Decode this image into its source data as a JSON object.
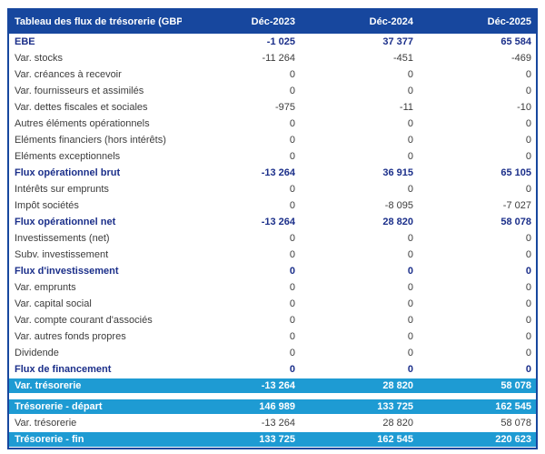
{
  "colors": {
    "header_bg": "#17479E",
    "highlight_bg": "#1E9BD3",
    "bold_text": "#1B2F8A",
    "body_text": "#3C3C3C",
    "border": "#17479E"
  },
  "table": {
    "header": {
      "title": "Tableau des flux de trésorerie (GBP)",
      "columns": [
        "Déc-2023",
        "Déc-2024",
        "Déc-2025"
      ]
    },
    "rows": [
      {
        "label": "EBE",
        "style": "bold",
        "values": [
          "-1 025",
          "37 377",
          "65 584"
        ]
      },
      {
        "label": "Var. stocks",
        "style": "normal",
        "values": [
          "-11 264",
          "-451",
          "-469"
        ]
      },
      {
        "label": "Var. créances à recevoir",
        "style": "normal",
        "values": [
          "0",
          "0",
          "0"
        ]
      },
      {
        "label": "Var. fournisseurs et assimilés",
        "style": "normal",
        "values": [
          "0",
          "0",
          "0"
        ]
      },
      {
        "label": "Var. dettes fiscales et sociales",
        "style": "normal",
        "values": [
          "-975",
          "-11",
          "-10"
        ]
      },
      {
        "label": "Autres éléments opérationnels",
        "style": "normal",
        "values": [
          "0",
          "0",
          "0"
        ]
      },
      {
        "label": "Eléments financiers (hors intérêts)",
        "style": "normal",
        "values": [
          "0",
          "0",
          "0"
        ]
      },
      {
        "label": "Eléments exceptionnels",
        "style": "normal",
        "values": [
          "0",
          "0",
          "0"
        ]
      },
      {
        "label": "Flux opérationnel brut",
        "style": "bold",
        "values": [
          "-13 264",
          "36 915",
          "65 105"
        ]
      },
      {
        "label": "Intérêts sur emprunts",
        "style": "normal",
        "values": [
          "0",
          "0",
          "0"
        ]
      },
      {
        "label": "Impôt sociétés",
        "style": "normal",
        "values": [
          "0",
          "-8 095",
          "-7 027"
        ]
      },
      {
        "label": "Flux opérationnel net",
        "style": "bold",
        "values": [
          "-13 264",
          "28 820",
          "58 078"
        ]
      },
      {
        "label": "Investissements (net)",
        "style": "normal",
        "values": [
          "0",
          "0",
          "0"
        ]
      },
      {
        "label": "Subv. investissement",
        "style": "normal",
        "values": [
          "0",
          "0",
          "0"
        ]
      },
      {
        "label": "Flux d'investissement",
        "style": "bold",
        "values": [
          "0",
          "0",
          "0"
        ]
      },
      {
        "label": "Var. emprunts",
        "style": "normal",
        "values": [
          "0",
          "0",
          "0"
        ]
      },
      {
        "label": "Var. capital social",
        "style": "normal",
        "values": [
          "0",
          "0",
          "0"
        ]
      },
      {
        "label": "Var. compte courant d'associés",
        "style": "normal",
        "values": [
          "0",
          "0",
          "0"
        ]
      },
      {
        "label": "Var. autres fonds propres",
        "style": "normal",
        "values": [
          "0",
          "0",
          "0"
        ]
      },
      {
        "label": "Dividende",
        "style": "normal",
        "values": [
          "0",
          "0",
          "0"
        ]
      },
      {
        "label": "Flux de financement",
        "style": "bold",
        "values": [
          "0",
          "0",
          "0"
        ]
      },
      {
        "label": "Var. trésorerie",
        "style": "highlight",
        "values": [
          "-13 264",
          "28 820",
          "58 078"
        ]
      }
    ],
    "summary_rows": [
      {
        "label": "Trésorerie - départ",
        "style": "highlight",
        "values": [
          "146 989",
          "133 725",
          "162 545"
        ]
      },
      {
        "label": "Var. trésorerie",
        "style": "normal",
        "values": [
          "-13 264",
          "28 820",
          "58 078"
        ]
      },
      {
        "label": "Trésorerie - fin",
        "style": "highlight",
        "values": [
          "133 725",
          "162 545",
          "220 623"
        ]
      }
    ]
  }
}
